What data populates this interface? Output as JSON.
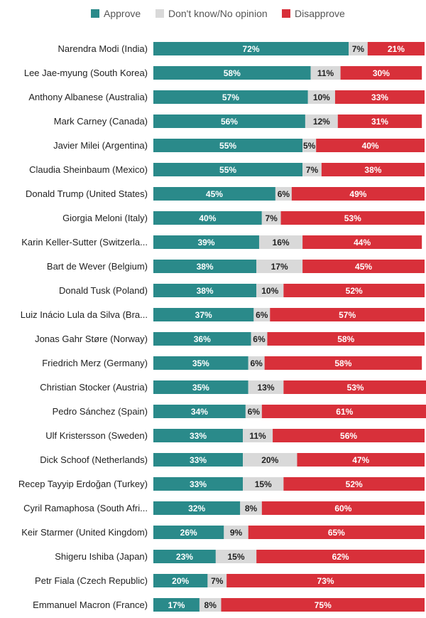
{
  "chart_data": {
    "type": "bar",
    "orientation": "horizontal",
    "stacked": true,
    "legend_position": "top",
    "grid": false,
    "xlim": [
      0,
      100
    ],
    "categories": [
      "Narendra Modi (India)",
      "Lee Jae-myung (South Korea)",
      "Anthony Albanese (Australia)",
      "Mark Carney (Canada)",
      "Javier Milei (Argentina)",
      "Claudia Sheinbaum (Mexico)",
      "Donald Trump (United States)",
      "Giorgia Meloni (Italy)",
      "Karin Keller-Sutter (Switzerla...",
      "Bart de Wever (Belgium)",
      "Donald Tusk (Poland)",
      "Luiz Inácio Lula da Silva (Bra...",
      "Jonas Gahr Støre (Norway)",
      "Friedrich Merz (Germany)",
      "Christian Stocker (Austria)",
      "Pedro Sánchez (Spain)",
      "Ulf Kristersson (Sweden)",
      "Dick Schoof (Netherlands)",
      "Recep Tayyip Erdoğan (Turkey)",
      "Cyril Ramaphosa (South Afri...",
      "Keir Starmer (United Kingdom)",
      "Shigeru Ishiba (Japan)",
      "Petr Fiala (Czech Republic)",
      "Emmanuel Macron (France)"
    ],
    "series": [
      {
        "name": "Approve",
        "color": "#2a8a8a",
        "values": [
          72,
          58,
          57,
          56,
          55,
          55,
          45,
          40,
          39,
          38,
          38,
          37,
          36,
          35,
          35,
          34,
          33,
          33,
          33,
          32,
          26,
          23,
          20,
          17
        ]
      },
      {
        "name": "Don't know/No opinion",
        "color": "#d9d9d9",
        "values": [
          7,
          11,
          10,
          12,
          5,
          7,
          6,
          7,
          16,
          17,
          10,
          6,
          6,
          6,
          13,
          6,
          11,
          20,
          15,
          8,
          9,
          15,
          7,
          8
        ]
      },
      {
        "name": "Disapprove",
        "color": "#d8303a",
        "values": [
          21,
          30,
          33,
          31,
          40,
          38,
          49,
          53,
          44,
          45,
          52,
          57,
          58,
          58,
          53,
          61,
          56,
          47,
          52,
          60,
          65,
          62,
          73,
          75
        ]
      }
    ],
    "value_suffix": "%"
  }
}
